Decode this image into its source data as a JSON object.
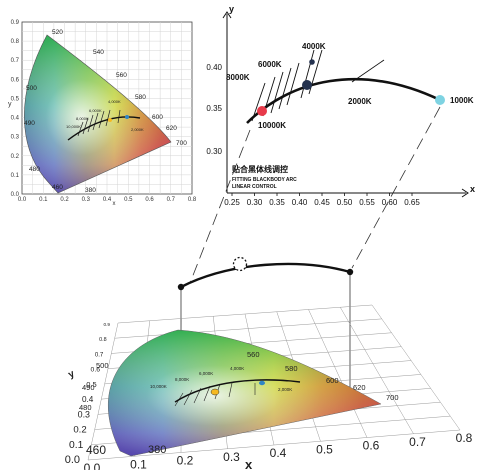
{
  "small_chart": {
    "x_axis_label": "x",
    "y_axis_label": "y",
    "x_ticks": [
      "0.0",
      "0.1",
      "0.2",
      "0.3",
      "0.4",
      "0.5",
      "0.6",
      "0.7",
      "0.8"
    ],
    "y_ticks": [
      "0.0",
      "0.1",
      "0.2",
      "0.3",
      "0.4",
      "0.5",
      "0.6",
      "0.7",
      "0.8",
      "0.9"
    ],
    "wavelength_labels": [
      "520",
      "540",
      "560",
      "580",
      "600",
      "620",
      "700",
      "500",
      "490",
      "480",
      "460",
      "380"
    ],
    "temperature_labels": [
      "10,000K",
      "8,000K",
      "6,000K",
      "4,000K",
      "2,000K"
    ]
  },
  "zoom_chart": {
    "x_axis_label": "x",
    "y_axis_label": "y",
    "x_ticks": [
      "0.25",
      "0.30",
      "0.35",
      "0.40",
      "0.45",
      "0.50",
      "0.55",
      "0.60",
      "0.65"
    ],
    "y_ticks": [
      "0.30",
      "0.35",
      "0.40"
    ],
    "caption_cn": "贴合黑体线调控",
    "caption_en_1": "FITTING BLACKBODY ARC",
    "caption_en_2": "LINEAR CONTROL",
    "temperature_labels": [
      "4000K",
      "6000K",
      "8000K",
      "2000K",
      "1000K",
      "10000K"
    ],
    "points": [
      {
        "name": "10000K",
        "x": 0.306,
        "y": 0.342,
        "color": "#e83a4a"
      },
      {
        "name": "4000K",
        "x": 0.393,
        "y": 0.377,
        "color": "#24324f"
      },
      {
        "name": "1000K",
        "x": 0.623,
        "y": 0.355,
        "color": "#7ed3e2"
      }
    ]
  },
  "perspective_chart": {
    "x_axis_label": "x",
    "y_axis_label": "y",
    "x_ticks": [
      "0.0",
      "0.1",
      "0.2",
      "0.3",
      "0.4",
      "0.5",
      "0.6",
      "0.7",
      "0.8"
    ],
    "y_ticks": [
      "0.0",
      "0.1",
      "0.2",
      "0.3",
      "0.4",
      "0.5",
      "0.6",
      "0.7",
      "0.8",
      "0.9"
    ],
    "wavelength_labels": [
      "560",
      "580",
      "600",
      "620",
      "700",
      "500",
      "490",
      "480",
      "460",
      "380"
    ],
    "temperature_labels": [
      "10,000K",
      "8,000K",
      "6,000K",
      "4,000K",
      "2,000K"
    ]
  },
  "colors": {
    "arc": "#111111",
    "grid": "#6d6d6d",
    "marker_red": "#e83a4a",
    "marker_navy": "#24324f",
    "marker_cyan": "#7ed3e2",
    "marker_yellow": "#f5b922"
  }
}
